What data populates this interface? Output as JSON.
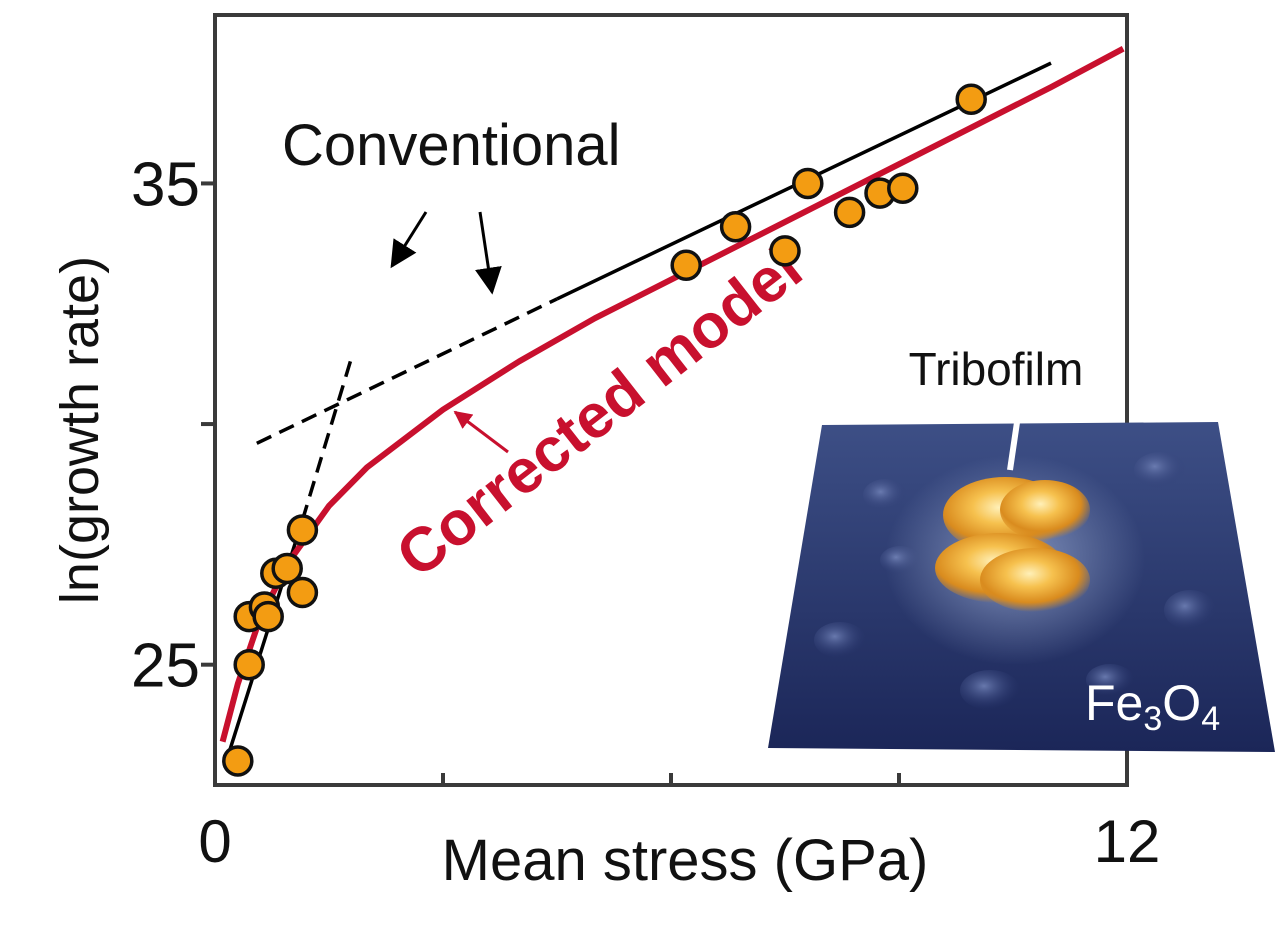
{
  "chart_data": {
    "type": "scatter",
    "xlabel": "Mean stress (GPa)",
    "ylabel": "ln(growth rate)",
    "xlim": [
      0,
      12
    ],
    "ylim": [
      22.5,
      38.5
    ],
    "x_tick_labels": [
      "0",
      "12"
    ],
    "x_ticks": [
      0,
      3,
      6,
      9,
      12
    ],
    "y_tick_labels": [
      "35",
      "25"
    ],
    "y_ticks": [
      25,
      30,
      35
    ],
    "grid": false,
    "series": [
      {
        "kind": "points",
        "color": "#f39c12",
        "points": [
          [
            0.3,
            23.0
          ],
          [
            0.45,
            25.0
          ],
          [
            0.45,
            26.0
          ],
          [
            0.65,
            26.2
          ],
          [
            0.7,
            26.0
          ],
          [
            0.8,
            26.9
          ],
          [
            0.95,
            27.0
          ],
          [
            1.15,
            26.5
          ],
          [
            1.15,
            27.8
          ],
          [
            6.2,
            33.3
          ],
          [
            6.85,
            34.1
          ],
          [
            7.5,
            33.6
          ],
          [
            7.8,
            35.0
          ],
          [
            8.35,
            34.4
          ],
          [
            8.75,
            34.8
          ],
          [
            9.05,
            34.9
          ],
          [
            9.95,
            36.75
          ]
        ]
      },
      {
        "kind": "line",
        "color": "#000000",
        "style": "solid",
        "points": [
          [
            0.15,
            23.0
          ],
          [
            1.15,
            28.0
          ]
        ]
      },
      {
        "kind": "line",
        "color": "#000000",
        "style": "dashed",
        "points": [
          [
            1.15,
            28.0
          ],
          [
            1.8,
            31.4
          ]
        ]
      },
      {
        "kind": "line",
        "color": "#000000",
        "style": "dashed",
        "points": [
          [
            0.55,
            29.6
          ],
          [
            4.5,
            32.6
          ]
        ]
      },
      {
        "kind": "line",
        "color": "#000000",
        "style": "solid",
        "points": [
          [
            4.5,
            32.6
          ],
          [
            11.0,
            37.5
          ]
        ]
      },
      {
        "name": "Corrected model",
        "kind": "curve",
        "color": "#c8102e",
        "points": [
          [
            0.1,
            23.4
          ],
          [
            0.3,
            24.6
          ],
          [
            0.6,
            26.0
          ],
          [
            1.0,
            27.2
          ],
          [
            1.5,
            28.3
          ],
          [
            2.0,
            29.1
          ],
          [
            3.0,
            30.3
          ],
          [
            4.0,
            31.3
          ],
          [
            5.0,
            32.2
          ],
          [
            6.0,
            33.0
          ],
          [
            7.0,
            33.8
          ],
          [
            8.0,
            34.6
          ],
          [
            9.0,
            35.4
          ],
          [
            10.0,
            36.2
          ],
          [
            11.0,
            37.0
          ],
          [
            11.95,
            37.8
          ]
        ]
      }
    ],
    "annotations": [
      {
        "text": "Conventional",
        "color": "#000000"
      },
      {
        "text": "Corrected model",
        "color": "#c8102e"
      }
    ],
    "inset": {
      "title": "Tribofilm",
      "label_base": "Fe",
      "label_sub1": "3",
      "label_mid": "O",
      "label_sub2": "4"
    }
  }
}
